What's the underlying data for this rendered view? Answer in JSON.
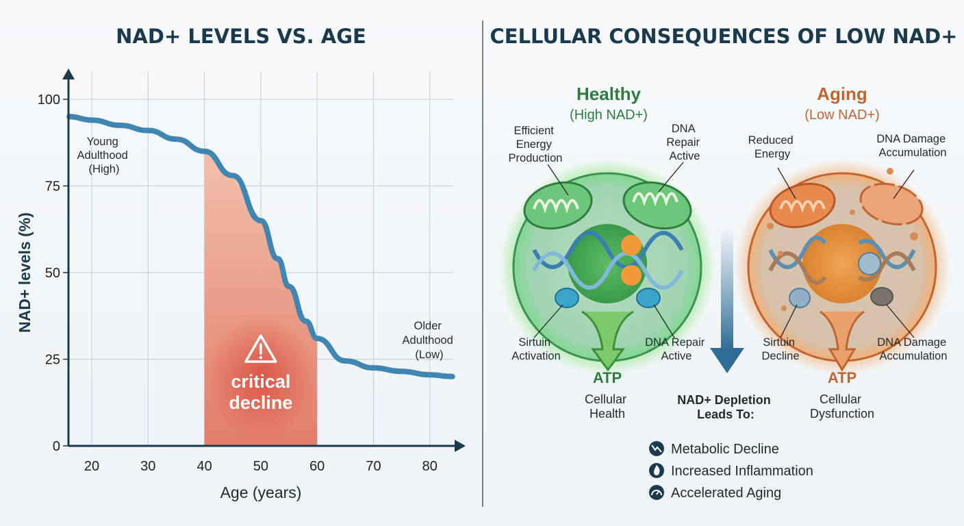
{
  "left_title": "NAD+ LEVELS VS. AGE",
  "right_title": "CELLULAR CONSEQUENCES OF LOW NAD+",
  "chart_data": {
    "type": "line",
    "title": "NAD+ LEVELS VS. AGE",
    "xlabel": "Age (years)",
    "ylabel": "NAD+ levels (%)",
    "xlim": [
      16,
      84
    ],
    "ylim": [
      0,
      100
    ],
    "xticks": [
      20,
      30,
      40,
      50,
      60,
      70,
      80
    ],
    "yticks": [
      0,
      25,
      50,
      75,
      100
    ],
    "grid": true,
    "series": [
      {
        "x": [
          16,
          20,
          25,
          30,
          35,
          40,
          45,
          50,
          53,
          55,
          58,
          60,
          65,
          70,
          75,
          80,
          84
        ],
        "y": [
          95,
          94,
          92.5,
          91,
          88.5,
          85,
          78,
          65,
          54,
          46,
          36,
          31,
          24.5,
          22.5,
          21.5,
          20.5,
          20
        ]
      }
    ],
    "color": "#3f86b3",
    "highlight": {
      "x_range": [
        40,
        60
      ],
      "color": "#e8806a",
      "label": [
        "critical",
        "decline"
      ],
      "icon": "warning-icon"
    },
    "annotations": [
      {
        "lines": [
          "Young",
          "Adulthood",
          "(High)"
        ]
      },
      {
        "lines": [
          "Older",
          "Adulthood",
          "(Low)"
        ]
      }
    ]
  },
  "diagram": {
    "healthy": {
      "title": "Healthy",
      "subtitle": "(High NAD+)",
      "color": "#2e7d3e",
      "labels": {
        "energy": [
          "Efficient",
          "Energy",
          "Production"
        ],
        "dna_top": [
          "DNA",
          "Repair",
          "Active"
        ],
        "sirtuin": [
          "Sirtuin",
          "Activation"
        ],
        "dna_bottom": [
          "DNA Repair",
          "Active"
        ]
      },
      "atp": "ATP",
      "outcome": [
        "Cellular",
        "Health"
      ]
    },
    "aging": {
      "title": "Aging",
      "subtitle": "(Low NAD+)",
      "color": "#c0652f",
      "labels": {
        "energy": [
          "Reduced",
          "Energy"
        ],
        "dna_top": [
          "DNA Damage",
          "Accumulation"
        ],
        "sirtuin": [
          "Sirtuin",
          "Decline"
        ],
        "dna_bottom": [
          "DNA Damage",
          "Accumulation"
        ]
      },
      "atp": "ATP",
      "outcome": [
        "Cellular",
        "Dysfunction"
      ]
    },
    "center": {
      "heading": [
        "NAD+ Depletion",
        "Leads To:"
      ],
      "items": [
        {
          "icon": "trend-down-icon",
          "label": "Metabolic Decline"
        },
        {
          "icon": "flame-icon",
          "label": "Increased Inflammation"
        },
        {
          "icon": "gauge-icon",
          "label": "Accelerated Aging"
        }
      ]
    }
  }
}
